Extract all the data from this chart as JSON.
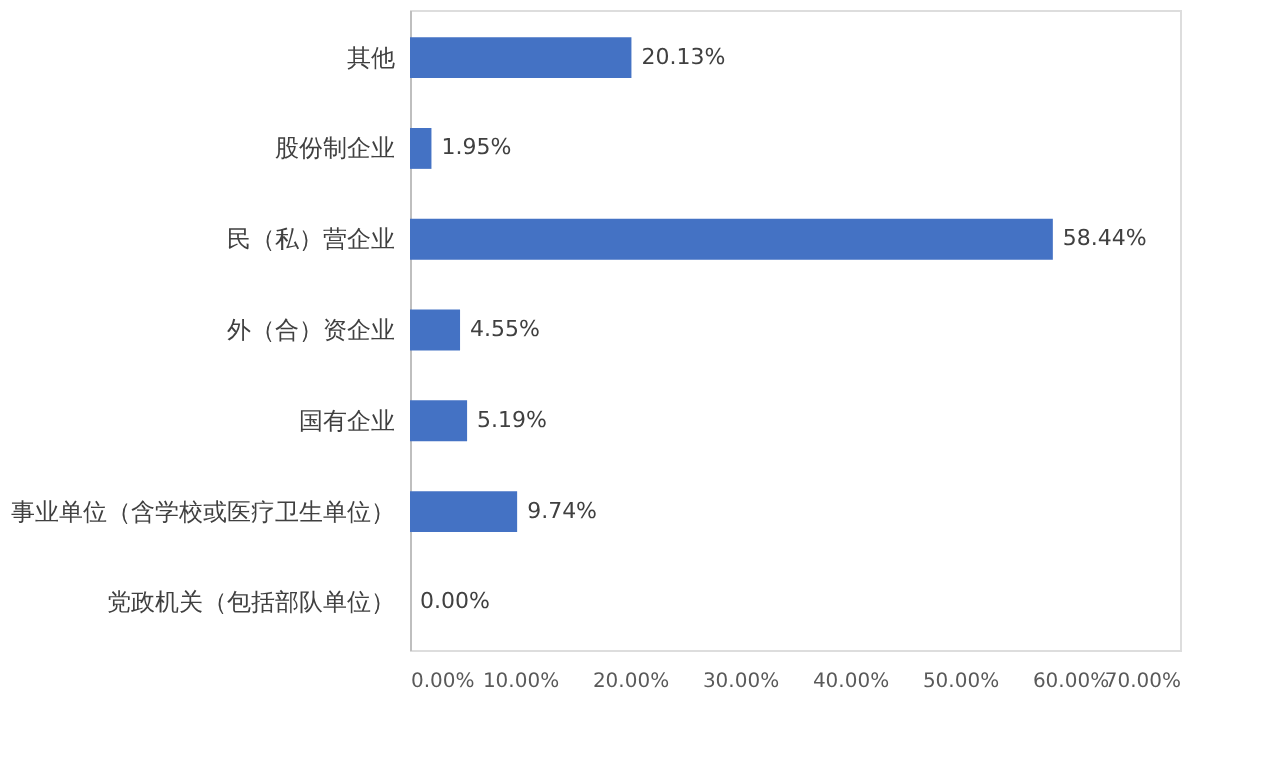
{
  "chart_data": {
    "type": "bar",
    "orientation": "horizontal",
    "categories": [
      "其他",
      "股份制企业",
      "民（私）营企业",
      "外（合）资企业",
      "国有企业",
      "事业单位（含学校或医疗卫生单位）",
      "党政机关（包括部队单位）"
    ],
    "values": [
      20.13,
      1.95,
      58.44,
      4.55,
      5.19,
      9.74,
      0.0
    ],
    "value_labels": [
      "20.13%",
      "1.95%",
      "58.44%",
      "4.55%",
      "5.19%",
      "9.74%",
      "0.00%"
    ],
    "color": "#4472c4",
    "xlim": [
      0,
      70
    ],
    "xticks": [
      {
        "value": 0,
        "label": "0.00%"
      },
      {
        "value": 10,
        "label": "10.00%"
      },
      {
        "value": 20,
        "label": "20.00%"
      },
      {
        "value": 30,
        "label": "30.00%"
      },
      {
        "value": 40,
        "label": "40.00%"
      },
      {
        "value": 50,
        "label": "50.00%"
      },
      {
        "value": 60,
        "label": "60.00%"
      },
      {
        "value": 70,
        "label": "70.00%"
      }
    ],
    "grid": false
  }
}
